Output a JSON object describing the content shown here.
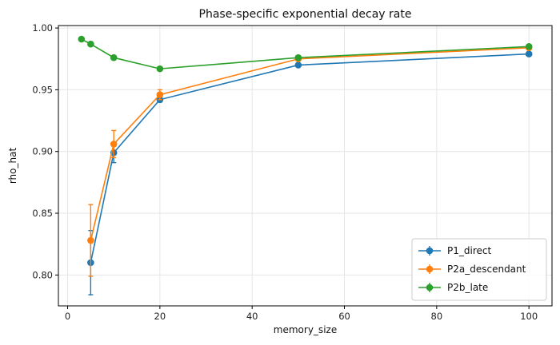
{
  "chart_data": {
    "type": "line",
    "title": "Phase-specific exponential decay rate",
    "xlabel": "memory_size",
    "ylabel": "rho_hat",
    "xlim": [
      -2,
      105
    ],
    "ylim": [
      0.775,
      1.002
    ],
    "xticks": [
      0,
      20,
      40,
      60,
      80,
      100
    ],
    "xtick_labels": [
      "0",
      "20",
      "40",
      "60",
      "80",
      "100"
    ],
    "yticks": [
      0.8,
      0.85,
      0.9,
      0.95,
      1.0
    ],
    "ytick_labels": [
      "0.80",
      "0.85",
      "0.90",
      "0.95",
      "1.00"
    ],
    "grid": true,
    "legend_position": "lower-right",
    "series": [
      {
        "name": "P1_direct",
        "color": "#1f77b4",
        "points": [
          {
            "x": 5,
            "y": 0.81,
            "err": 0.026
          },
          {
            "x": 10,
            "y": 0.899,
            "err": 0.008
          },
          {
            "x": 20,
            "y": 0.942,
            "err": 0.002
          },
          {
            "x": 50,
            "y": 0.97,
            "err": 0.001
          },
          {
            "x": 100,
            "y": 0.979,
            "err": 0.001
          }
        ]
      },
      {
        "name": "P2a_descendant",
        "color": "#ff7f0e",
        "points": [
          {
            "x": 5,
            "y": 0.828,
            "err": 0.029
          },
          {
            "x": 10,
            "y": 0.906,
            "err": 0.011
          },
          {
            "x": 20,
            "y": 0.946,
            "err": 0.004
          },
          {
            "x": 50,
            "y": 0.975,
            "err": 0.001
          },
          {
            "x": 100,
            "y": 0.984,
            "err": 0.001
          }
        ]
      },
      {
        "name": "P2b_late",
        "color": "#2ca02c",
        "points": [
          {
            "x": 3,
            "y": 0.991,
            "err": 0.0005
          },
          {
            "x": 5,
            "y": 0.987,
            "err": 0.0005
          },
          {
            "x": 10,
            "y": 0.976,
            "err": 0.0005
          },
          {
            "x": 20,
            "y": 0.967,
            "err": 0.0005
          },
          {
            "x": 50,
            "y": 0.976,
            "err": 0.0005
          },
          {
            "x": 100,
            "y": 0.985,
            "err": 0.0005
          }
        ]
      }
    ]
  }
}
